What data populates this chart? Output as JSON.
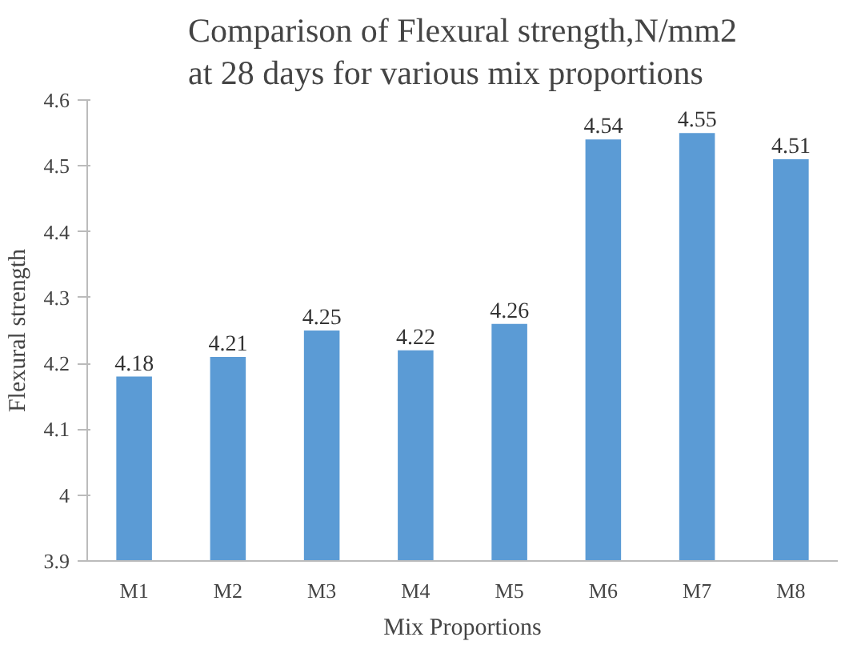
{
  "chart_data": {
    "type": "bar",
    "title": "Comparison of Flexural strength,N/mm2\nat 28 days for various mix proportions",
    "xlabel": "Mix Proportions",
    "ylabel": "Flexural strength",
    "categories": [
      "M1",
      "M2",
      "M3",
      "M4",
      "M5",
      "M6",
      "M7",
      "M8"
    ],
    "values": [
      4.18,
      4.21,
      4.25,
      4.22,
      4.26,
      4.54,
      4.55,
      4.51
    ],
    "color": "#5b9bd5",
    "ylim": [
      3.9,
      4.6
    ],
    "yticks": [
      3.9,
      4,
      4.1,
      4.2,
      4.3,
      4.4,
      4.5,
      4.6
    ],
    "grid": false,
    "data_labels": true
  }
}
